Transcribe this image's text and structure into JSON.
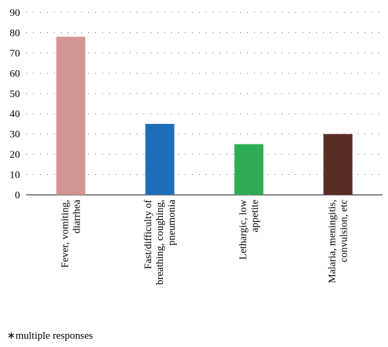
{
  "chart_data": {
    "type": "bar",
    "categories": [
      [
        "Fever, vomiting,",
        "diarrhea"
      ],
      [
        "Fast/difficulty of",
        "breathing, coughing,",
        "pneumonia"
      ],
      [
        "Lethargic, low",
        "appetite"
      ],
      [
        "Malaria, meningitis,",
        "convulsion, etc"
      ]
    ],
    "values": [
      78,
      35,
      25,
      30
    ],
    "colors": [
      "#d29595",
      "#1f6fb8",
      "#2ead54",
      "#5a2c28"
    ],
    "title": "",
    "xlabel": "",
    "ylabel": "",
    "ylim": [
      0,
      90
    ],
    "yticks": [
      0,
      10,
      20,
      30,
      40,
      50,
      60,
      70,
      80,
      90
    ],
    "grid": "horizontal-dotted",
    "legend": "none"
  },
  "footnote": "∗multiple responses"
}
